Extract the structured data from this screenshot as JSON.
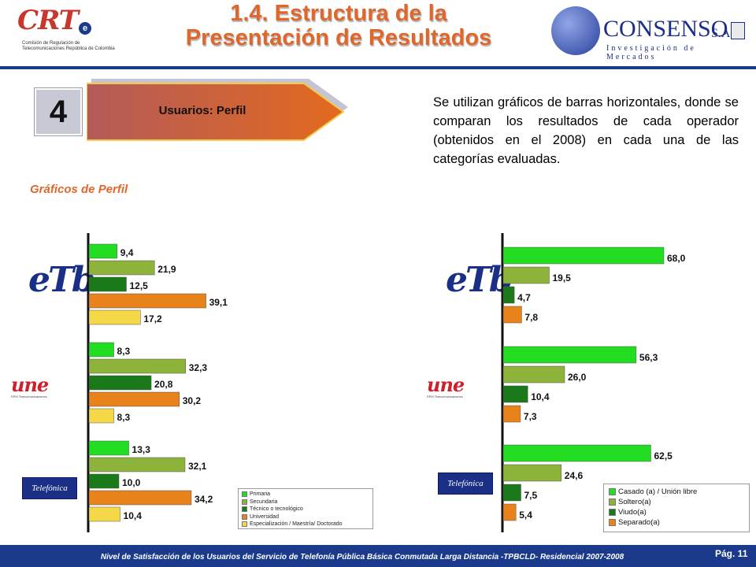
{
  "header": {
    "title_line1": "1.4. Estructura de la",
    "title_line2": "Presentación de Resultados",
    "crt_logo": {
      "main": "CRT",
      "badge": "e",
      "subtitle": "Comisión de Regulación de Telecomunicaciones República de Colombia"
    },
    "consenso_logo": {
      "name": "CONSENSO",
      "suffix": "S.A.",
      "tagline": "Investigación de Mercados"
    }
  },
  "section": {
    "number": "4",
    "label": "Usuarios: Perfil"
  },
  "description": "Se utilizan gráficos de barras horizontales, donde se comparan los resultados de cada operador (obtenidos en el 2008) en cada una de las categorías evaluadas.",
  "subtitle": "Gráficos de Perfil",
  "operators": [
    {
      "logo_text": "eTb"
    },
    {
      "logo_text": "une",
      "logo_sub": "EPM Telecomunicaciones"
    },
    {
      "logo_text": "Telefónica"
    }
  ],
  "footer": {
    "text": "Nivel de Satisfacción de los Usuarios del Servicio de Telefonía Pública Básica Conmutada Larga Distancia -TPBCLD- Residencial 2007-2008",
    "page": "Pág. 11"
  },
  "colors": {
    "title": "#e0672b",
    "navy": "#1b3a8c",
    "arrow": "#d9622a",
    "green_bright": "#22dd22",
    "olive_green": "#8db33a",
    "dark_green": "#1a7a1a",
    "orange": "#e8821a",
    "yellow": "#f5d848"
  },
  "chart_data": [
    {
      "type": "bar",
      "orientation": "horizontal",
      "title": "",
      "groups": [
        "eTb",
        "une",
        "Telefónica"
      ],
      "series": [
        {
          "name": "Primaria",
          "color": "#22dd22",
          "values": [
            9.4,
            8.3,
            13.3
          ]
        },
        {
          "name": "Secundaria",
          "color": "#8db33a",
          "values": [
            21.9,
            32.3,
            32.1
          ]
        },
        {
          "name": "Técnico o tecnológico",
          "color": "#1a7a1a",
          "values": [
            12.5,
            20.8,
            10.0
          ]
        },
        {
          "name": "Universidad",
          "color": "#e8821a",
          "values": [
            39.1,
            30.2,
            34.2
          ]
        },
        {
          "name": "Especialización / Maestría/ Doctorado",
          "color": "#f5d848",
          "values": [
            17.2,
            8.3,
            10.4
          ]
        }
      ],
      "value_labels": [
        [
          "9,4",
          "8,3",
          "13,3"
        ],
        [
          "21,9",
          "32,3",
          "32,1"
        ],
        [
          "12,5",
          "20,8",
          "10,0"
        ],
        [
          "39,1",
          "30,2",
          "34,2"
        ],
        [
          "17,2",
          "8,3",
          "10,4"
        ]
      ],
      "legend_position": "bottom-right",
      "grid": false
    },
    {
      "type": "bar",
      "orientation": "horizontal",
      "title": "",
      "groups": [
        "eTb",
        "une",
        "Telefónica"
      ],
      "series": [
        {
          "name": "Casado (a) / Unión libre",
          "color": "#22dd22",
          "values": [
            68.0,
            56.3,
            62.5
          ]
        },
        {
          "name": "Soltero(a)",
          "color": "#8db33a",
          "values": [
            19.5,
            26.0,
            24.6
          ]
        },
        {
          "name": "Viudo(a)",
          "color": "#1a7a1a",
          "values": [
            4.7,
            10.4,
            7.5
          ]
        },
        {
          "name": "Separado(a)",
          "color": "#e8821a",
          "values": [
            7.8,
            7.3,
            5.4
          ]
        }
      ],
      "value_labels": [
        [
          "68,0",
          "56,3",
          "62,5"
        ],
        [
          "19,5",
          "26,0",
          "24,6"
        ],
        [
          "4,7",
          "10,4",
          "7,5"
        ],
        [
          "7,8",
          "7,3",
          "5,4"
        ]
      ],
      "legend_position": "bottom-right",
      "grid": false
    }
  ]
}
